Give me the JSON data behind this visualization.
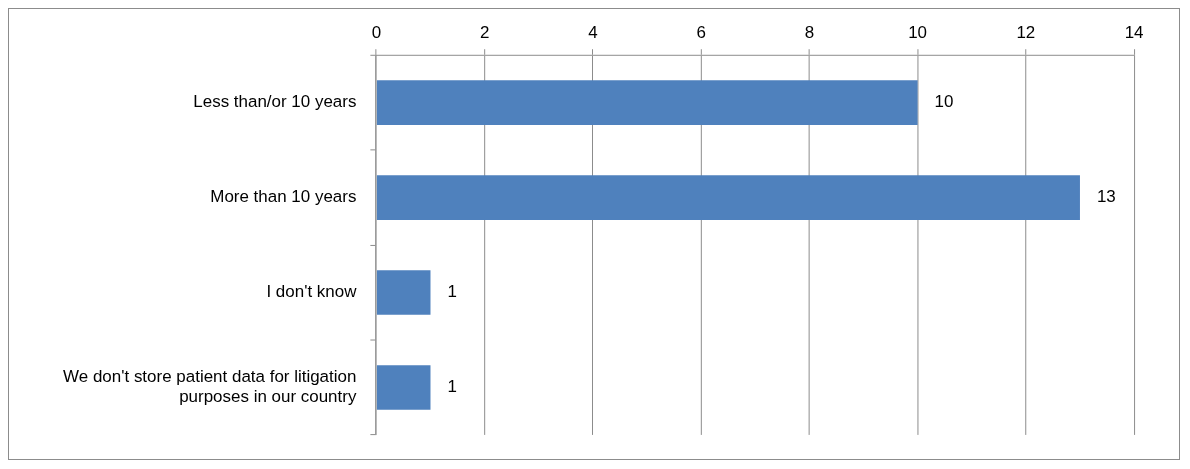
{
  "chart_data": {
    "type": "bar",
    "orientation": "horizontal",
    "categories": [
      "Less than/or 10 years",
      "More than 10 years",
      "I don't know",
      "We don't store patient data for litigation purposes in our country"
    ],
    "values": [
      10,
      13,
      1,
      1
    ],
    "color": "#4f81bd",
    "xlim": [
      0,
      14
    ],
    "xticks": [
      0,
      2,
      4,
      6,
      8,
      10,
      12,
      14
    ],
    "grid": "x",
    "data_labels": true,
    "legend": false
  }
}
